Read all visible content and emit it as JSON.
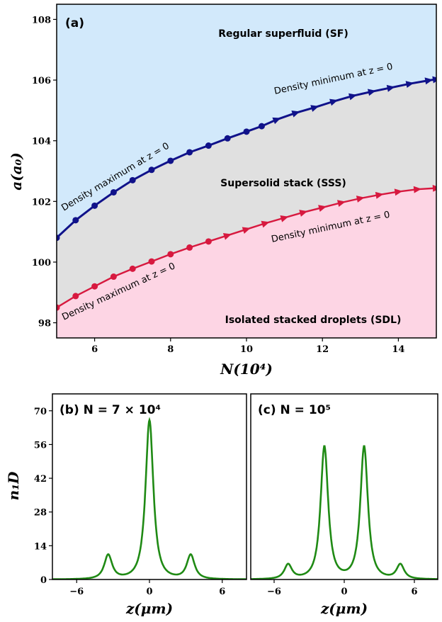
{
  "chart_data": [
    {
      "type": "line",
      "panel_label": "(a)",
      "xlabel": "N(10⁴)",
      "ylabel": "a(a₀)",
      "xlim": [
        5,
        15
      ],
      "ylim": [
        97.5,
        108.5
      ],
      "xticks": [
        "6",
        "8",
        "10",
        "12",
        "14"
      ],
      "yticks": [
        "98",
        "100",
        "102",
        "104",
        "106",
        "108"
      ],
      "regions": [
        {
          "name": "Regular superfluid (SF)",
          "color": "#d2e9fb"
        },
        {
          "name": "Supersolid stack (SSS)",
          "color": "#e0e0e0"
        },
        {
          "name": "Isolated stacked droplets (SDL)",
          "color": "#fdd5e4"
        }
      ],
      "series": [
        {
          "color": "#10128a",
          "x": [
            5,
            5.5,
            6,
            6.5,
            7,
            7.5,
            8,
            8.5,
            9,
            9.5,
            10,
            10.4,
            10.8,
            11.3,
            11.8,
            12.3,
            12.8,
            13.3,
            13.8,
            14.3,
            14.8,
            15
          ],
          "y": [
            100.8,
            101.38,
            101.86,
            102.3,
            102.7,
            103.04,
            103.34,
            103.62,
            103.84,
            104.08,
            104.3,
            104.48,
            104.7,
            104.92,
            105.1,
            105.3,
            105.48,
            105.62,
            105.75,
            105.88,
            105.99,
            106.03
          ],
          "markers_circle_until": 10.4,
          "annotations": [
            "Density maximum at z = 0",
            "Density minimum at z = 0"
          ]
        },
        {
          "color": "#d7193f",
          "x": [
            5,
            5.5,
            6,
            6.5,
            7,
            7.5,
            8,
            8.5,
            9,
            9.5,
            10,
            10.5,
            11,
            11.5,
            12,
            12.5,
            13,
            13.5,
            14,
            14.5,
            15
          ],
          "y": [
            98.5,
            98.88,
            99.2,
            99.52,
            99.78,
            100.02,
            100.26,
            100.48,
            100.68,
            100.88,
            101.08,
            101.28,
            101.46,
            101.64,
            101.8,
            101.96,
            102.1,
            102.22,
            102.32,
            102.4,
            102.44
          ],
          "markers_circle_until": 9.0,
          "annotations": [
            "Density maximum at z = 0",
            "Density minimum at z = 0"
          ]
        }
      ]
    },
    {
      "type": "line",
      "panel_label": "(b) N = 7 × 10⁴",
      "xlabel": "z(μm)",
      "ylabel": "n₁D",
      "xlim": [
        -8,
        8
      ],
      "ylim": [
        0,
        77
      ],
      "xticks": [
        "−6",
        "0",
        "6"
      ],
      "yticks": [
        "0",
        "14",
        "28",
        "42",
        "56",
        "70"
      ],
      "color": "#1f8a14",
      "peaks": [
        {
          "center": -3.4,
          "height": 10
        },
        {
          "center": 0,
          "height": 66
        },
        {
          "center": 3.4,
          "height": 10
        }
      ]
    },
    {
      "type": "line",
      "panel_label": "(c) N = 10⁵",
      "xlabel": "z(μm)",
      "xlim": [
        -8,
        8
      ],
      "ylim": [
        0,
        77
      ],
      "xticks": [
        "−6",
        "0",
        "6"
      ],
      "color": "#1f8a14",
      "peaks": [
        {
          "center": -4.8,
          "height": 6
        },
        {
          "center": -1.7,
          "height": 55
        },
        {
          "center": 1.7,
          "height": 55
        },
        {
          "center": 4.8,
          "height": 6
        }
      ]
    }
  ]
}
